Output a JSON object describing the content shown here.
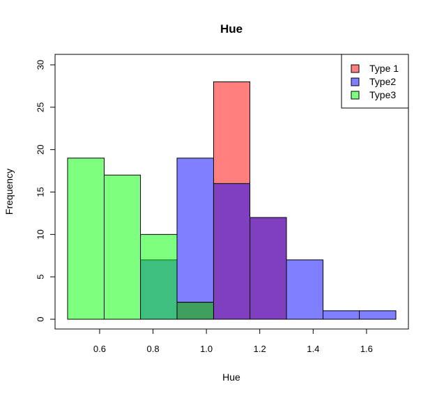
{
  "chart_data": {
    "type": "bar",
    "subtype": "overlaid-histogram",
    "title": "Hue",
    "xlabel": "Hue",
    "ylabel": "Frequency",
    "xlim": [
      0.48,
      1.71
    ],
    "ylim": [
      0,
      30
    ],
    "x_ticks": [
      0.6,
      0.8,
      1.0,
      1.2,
      1.4,
      1.6
    ],
    "x_tick_labels": [
      "0.6",
      "0.8",
      "1.0",
      "1.2",
      "1.4",
      "1.6"
    ],
    "y_ticks": [
      0,
      5,
      10,
      15,
      20,
      25,
      30
    ],
    "y_tick_labels": [
      "0",
      "5",
      "10",
      "15",
      "20",
      "25",
      "30"
    ],
    "bin_edges": [
      0.48,
      0.617,
      0.753,
      0.89,
      1.027,
      1.163,
      1.3,
      1.437,
      1.573,
      1.71
    ],
    "grid": false,
    "legend_position": "top-right",
    "series": [
      {
        "name": "Type 1",
        "color": "#ff0000",
        "fill": "rgba(255,0,0,0.5)",
        "values": [
          0,
          0,
          0,
          2,
          28,
          12,
          0,
          0,
          0
        ]
      },
      {
        "name": "Type2",
        "color": "#0000ff",
        "fill": "rgba(0,0,255,0.5)",
        "values": [
          0,
          0,
          7,
          19,
          16,
          12,
          7,
          1,
          1
        ]
      },
      {
        "name": "Type3",
        "color": "#00ff00",
        "fill": "rgba(0,255,0,0.5)",
        "values": [
          19,
          17,
          10,
          2,
          0,
          0,
          0,
          0,
          0
        ]
      }
    ]
  }
}
